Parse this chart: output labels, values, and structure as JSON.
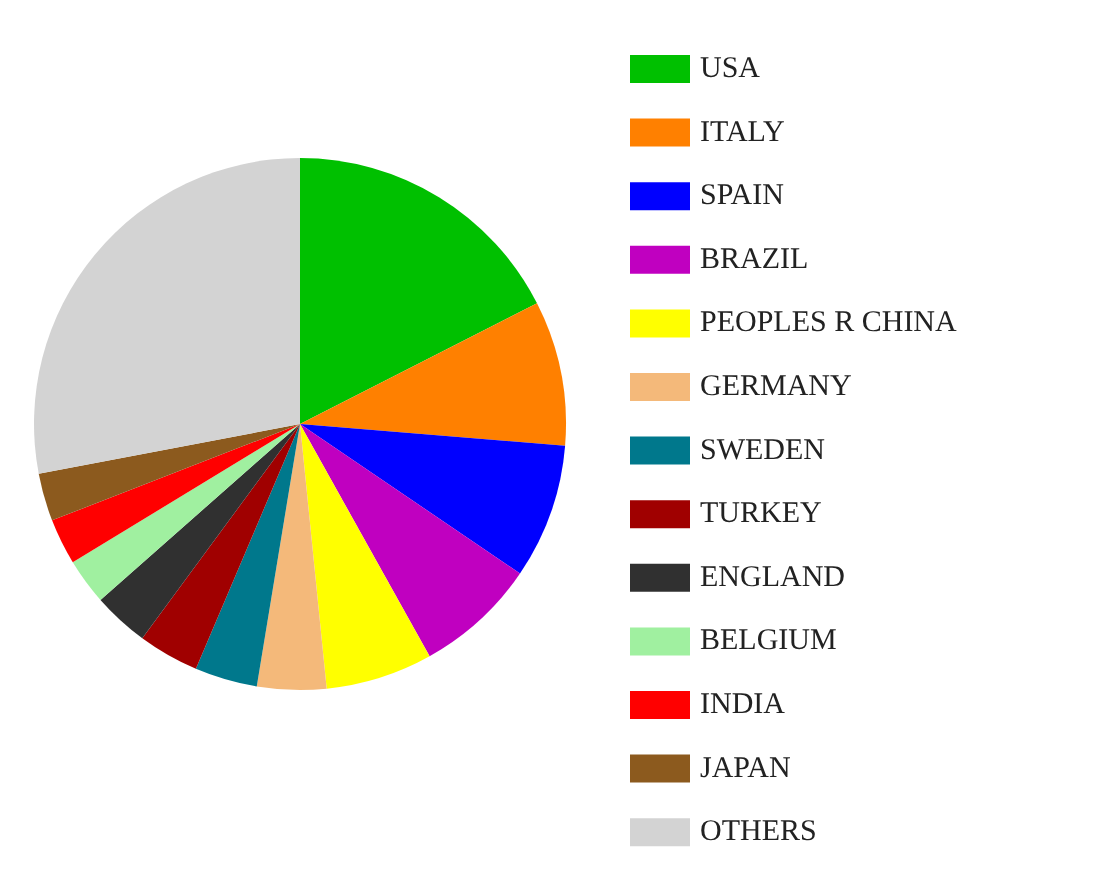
{
  "chart_data": {
    "type": "pie",
    "categories": [
      "USA",
      "ITALY",
      "SPAIN",
      "BRAZIL",
      "PEOPLES R CHINA",
      "GERMANY",
      "SWEDEN",
      "TURKEY",
      "ENGLAND",
      "BELGIUM",
      "INDIA",
      "JAPAN",
      "OTHERS"
    ],
    "values": [
      17.5,
      8.8,
      8.2,
      7.4,
      6.5,
      4.2,
      3.8,
      3.7,
      3.4,
      2.8,
      2.8,
      2.9,
      28.0
    ],
    "colors": [
      "#00c000",
      "#ff8000",
      "#0000ff",
      "#c000c0",
      "#ffff00",
      "#f4b97a",
      "#00788c",
      "#a00000",
      "#303030",
      "#a0f0a0",
      "#ff0000",
      "#8c5a1e",
      "#d3d3d3"
    ],
    "legend": "right"
  }
}
